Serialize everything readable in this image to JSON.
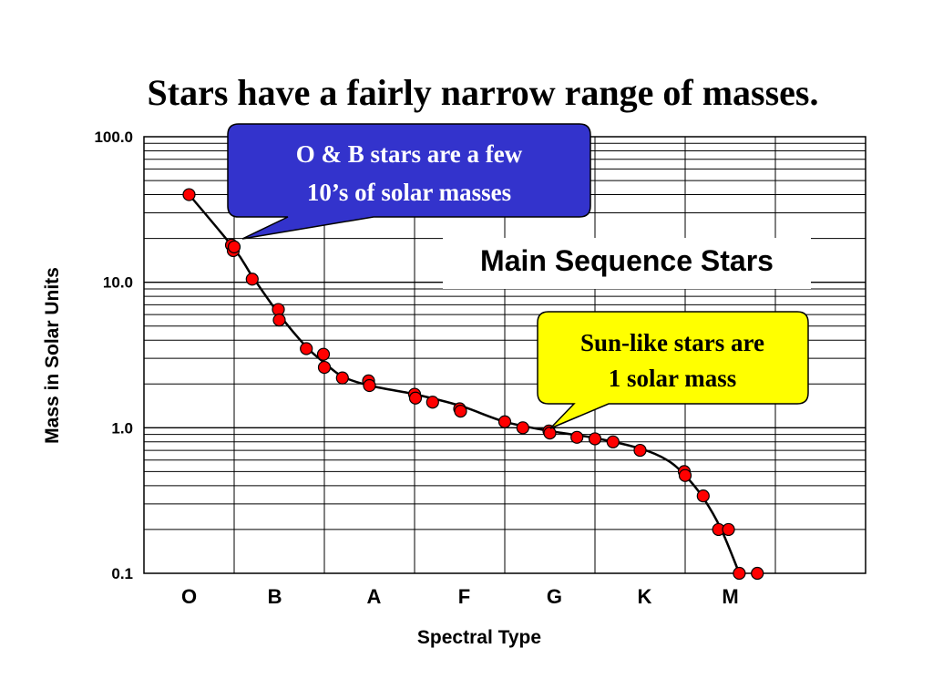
{
  "slide": {
    "title": "Stars have a fairly narrow range of masses."
  },
  "chart_data": {
    "type": "scatter",
    "title": "Main Sequence Stars",
    "xlabel": "Spectral Type",
    "ylabel": "Mass in Solar Units",
    "y_scale": "log",
    "ylim": [
      0.1,
      100
    ],
    "y_tick_labels": [
      "100.0",
      "10.0",
      "1.0",
      "0.1"
    ],
    "y_tick_values": [
      100,
      10,
      1,
      0.1
    ],
    "x_scale": "linear",
    "xlim": [
      0,
      8
    ],
    "x_tick_labels": [
      "O",
      "B",
      "A",
      "F",
      "G",
      "K",
      "M"
    ],
    "x_tick_values": [
      0.5,
      1.45,
      2.55,
      3.55,
      4.55,
      5.55,
      6.5
    ],
    "x_grid": [
      1,
      2,
      3,
      4,
      5,
      6,
      7
    ],
    "grid": true,
    "series": [
      {
        "marker_color": "#FF0000",
        "line_color": "#000000",
        "points": [
          {
            "x": 0.5,
            "y": 40
          },
          {
            "x": 0.97,
            "y": 18
          },
          {
            "x": 0.99,
            "y": 16.5
          },
          {
            "x": 1.0,
            "y": 17.5
          },
          {
            "x": 1.2,
            "y": 10.5
          },
          {
            "x": 1.49,
            "y": 6.5
          },
          {
            "x": 1.5,
            "y": 5.5
          },
          {
            "x": 1.8,
            "y": 3.5
          },
          {
            "x": 1.99,
            "y": 3.2
          },
          {
            "x": 2.0,
            "y": 2.6
          },
          {
            "x": 2.2,
            "y": 2.2
          },
          {
            "x": 2.49,
            "y": 2.1
          },
          {
            "x": 2.5,
            "y": 1.95
          },
          {
            "x": 3.0,
            "y": 1.7
          },
          {
            "x": 3.01,
            "y": 1.6
          },
          {
            "x": 3.2,
            "y": 1.5
          },
          {
            "x": 3.5,
            "y": 1.35
          },
          {
            "x": 3.51,
            "y": 1.3
          },
          {
            "x": 4.0,
            "y": 1.1
          },
          {
            "x": 4.2,
            "y": 1.0
          },
          {
            "x": 4.49,
            "y": 0.95
          },
          {
            "x": 4.5,
            "y": 0.92
          },
          {
            "x": 4.8,
            "y": 0.86
          },
          {
            "x": 5.0,
            "y": 0.84
          },
          {
            "x": 5.2,
            "y": 0.8
          },
          {
            "x": 5.5,
            "y": 0.7
          },
          {
            "x": 5.99,
            "y": 0.5
          },
          {
            "x": 6.0,
            "y": 0.47
          },
          {
            "x": 6.2,
            "y": 0.34
          },
          {
            "x": 6.37,
            "y": 0.2
          },
          {
            "x": 6.48,
            "y": 0.2
          },
          {
            "x": 6.6,
            "y": 0.1
          },
          {
            "x": 6.8,
            "y": 0.1
          }
        ],
        "curve": [
          {
            "x": 0.5,
            "y": 40
          },
          {
            "x": 1.0,
            "y": 17
          },
          {
            "x": 1.2,
            "y": 11
          },
          {
            "x": 1.5,
            "y": 6
          },
          {
            "x": 1.8,
            "y": 3.6
          },
          {
            "x": 2.0,
            "y": 2.8
          },
          {
            "x": 2.2,
            "y": 2.25
          },
          {
            "x": 2.5,
            "y": 1.95
          },
          {
            "x": 3.0,
            "y": 1.7
          },
          {
            "x": 3.5,
            "y": 1.42
          },
          {
            "x": 4.0,
            "y": 1.1
          },
          {
            "x": 4.5,
            "y": 0.95
          },
          {
            "x": 5.0,
            "y": 0.85
          },
          {
            "x": 5.5,
            "y": 0.72
          },
          {
            "x": 5.8,
            "y": 0.6
          },
          {
            "x": 6.0,
            "y": 0.47
          },
          {
            "x": 6.2,
            "y": 0.33
          },
          {
            "x": 6.4,
            "y": 0.2
          },
          {
            "x": 6.6,
            "y": 0.1
          }
        ]
      }
    ],
    "annotations": [
      {
        "id": "ob",
        "lines": [
          "O & B stars are a few",
          "10’s of solar masses"
        ],
        "fill": "#3333CC",
        "text_color": "#FFFFFF"
      },
      {
        "id": "sun",
        "lines": [
          "Sun-like stars are",
          "1 solar mass"
        ],
        "fill": "#FFFF00",
        "text_color": "#000000"
      }
    ]
  }
}
